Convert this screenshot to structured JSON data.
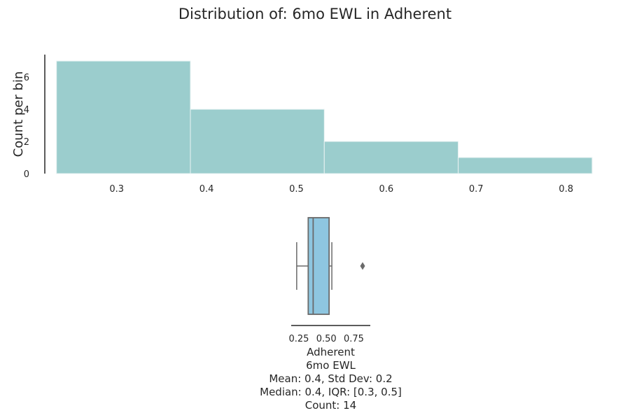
{
  "title": "Distribution of: 6mo EWL in Adherent",
  "colors": {
    "hist_fill": "#9bcdcd",
    "hist_edge": "#e9f3f3",
    "box_fill": "#8ec6e0",
    "box_line": "#6a6a6a",
    "axis": "#262626"
  },
  "chart_data": [
    {
      "type": "histogram",
      "ylabel": "Count per bin",
      "xlim": [
        0.22,
        0.84
      ],
      "ylim": [
        0,
        7.4
      ],
      "x_ticks": [
        0.3,
        0.4,
        0.5,
        0.6,
        0.7,
        0.8
      ],
      "y_ticks": [
        0,
        2,
        4,
        6
      ],
      "bins": [
        {
          "x0": 0.233,
          "x1": 0.382,
          "count": 7
        },
        {
          "x0": 0.382,
          "x1": 0.531,
          "count": 4
        },
        {
          "x0": 0.531,
          "x1": 0.68,
          "count": 2
        },
        {
          "x0": 0.68,
          "x1": 0.829,
          "count": 1
        }
      ]
    },
    {
      "type": "box",
      "xlim": [
        0.18,
        0.9
      ],
      "x_ticks": [
        0.25,
        0.5,
        0.75
      ],
      "whisker_low": 0.23,
      "q1": 0.335,
      "median": 0.38,
      "q3": 0.525,
      "whisker_high": 0.55,
      "outliers": [
        0.83
      ]
    }
  ],
  "stats": {
    "group": "Adherent",
    "variable": "6mo EWL",
    "mean_line": "Mean: 0.4, Std Dev: 0.2",
    "median_line": "Median: 0.4, IQR: [0.3, 0.5]",
    "count_line": "Count: 14"
  }
}
